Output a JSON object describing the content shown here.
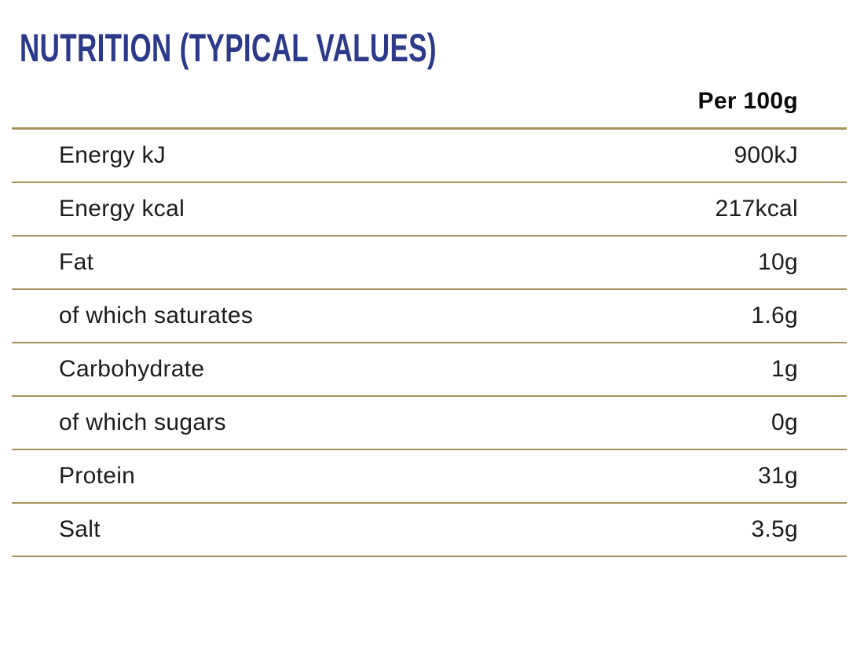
{
  "title": "NUTRITION (TYPICAL VALUES)",
  "table": {
    "value_column_header": "Per 100g",
    "rows": [
      {
        "label": "Energy kJ",
        "value": "900kJ"
      },
      {
        "label": "Energy kcal",
        "value": "217kcal"
      },
      {
        "label": "Fat",
        "value": "10g"
      },
      {
        "label": "of which saturates",
        "value": "1.6g"
      },
      {
        "label": "Carbohydrate",
        "value": "1g"
      },
      {
        "label": "of which sugars",
        "value": "0g"
      },
      {
        "label": "Protein",
        "value": "31g"
      },
      {
        "label": "Salt",
        "value": "3.5g"
      }
    ]
  },
  "colors": {
    "title_navy": "#2B3A8A",
    "rule_gold": "#A6925B",
    "row_text": "#1C1C1E",
    "header_text": "#0A0A0A",
    "background": "#FFFFFF"
  }
}
